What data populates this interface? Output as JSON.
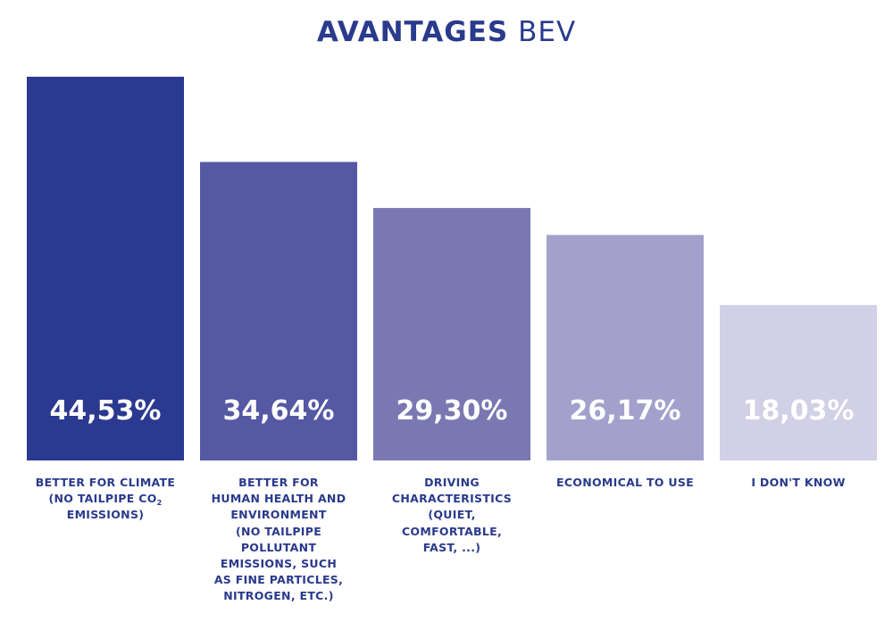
{
  "title": {
    "bold": "AVANTAGES",
    "light": "BEV"
  },
  "chart_data": {
    "type": "bar",
    "title": "AVANTAGES BEV",
    "categories": [
      {
        "lines": [
          "BETTER FOR CLIMATE",
          "(NO TAILPIPE CO",
          "EMISSIONS)"
        ],
        "subscript": {
          "line": 1,
          "text": "2"
        }
      },
      {
        "lines": [
          "BETTER FOR",
          "HUMAN HEALTH AND",
          "ENVIRONMENT",
          "(NO TAILPIPE",
          "POLLUTANT",
          "EMISSIONS, SUCH",
          "AS FINE PARTICLES,",
          "NITROGEN, ETC.)"
        ]
      },
      {
        "lines": [
          "DRIVING",
          "CHARACTERISTICS",
          "(QUIET,",
          "COMFORTABLE,",
          "FAST, ...)"
        ]
      },
      {
        "lines": [
          "ECONOMICAL TO USE"
        ]
      },
      {
        "lines": [
          "I DON'T KNOW"
        ]
      }
    ],
    "values": [
      44.53,
      34.64,
      29.3,
      26.17,
      18.03
    ],
    "value_labels": [
      "44,53%",
      "34,64%",
      "29,30%",
      "26,17%",
      "18,03%"
    ],
    "unit": "%",
    "colors": [
      "#2b3990",
      "#5558a3",
      "#7a78b2",
      "#a3a1cb",
      "#d1d0e6"
    ],
    "ylim": [
      0,
      44.53
    ],
    "grid": false,
    "legend": "none"
  }
}
